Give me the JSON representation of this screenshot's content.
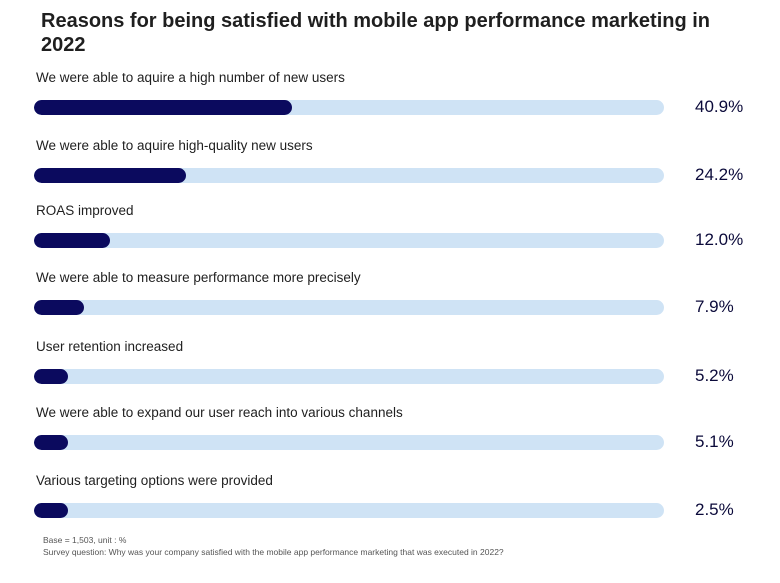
{
  "chart_data": {
    "type": "bar",
    "orientation": "horizontal",
    "title": "Reasons for being satisfied with mobile app performance marketing in 2022",
    "categories": [
      "We were able to aquire a high number of new users",
      "We were able to aquire high-quality new users",
      "ROAS improved",
      "We were able to measure performance more precisely",
      "User retention increased",
      "We were able to expand our user reach into various channels",
      "Various targeting options were provided"
    ],
    "values": [
      40.9,
      24.2,
      12.0,
      7.9,
      5.2,
      5.1,
      2.5
    ],
    "value_labels": [
      "40.9%",
      "24.2%",
      "12.0%",
      "7.9%",
      "5.2%",
      "5.1%",
      "2.5%"
    ],
    "xlim": [
      0,
      100
    ],
    "grid": false,
    "colors": {
      "fill": "#0b0a5e",
      "track": "#cfe3f5"
    }
  },
  "footnotes": {
    "base": "Base = 1,503, unit : %",
    "question": "Survey question: Why was your company satisfied with the mobile app performance marketing that was executed in 2022?"
  }
}
